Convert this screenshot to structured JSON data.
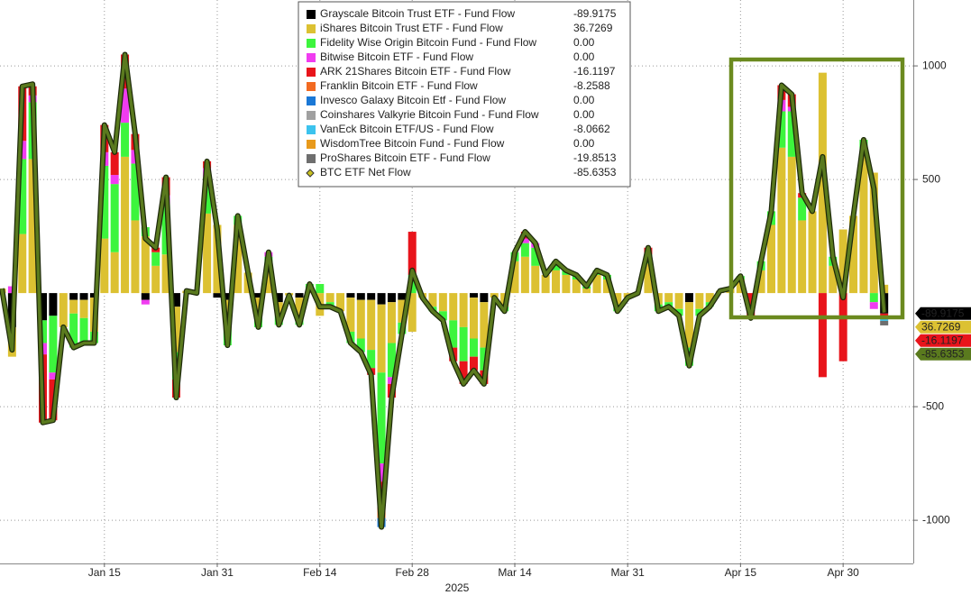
{
  "chart_data": {
    "type": "bar",
    "x_label": "2025",
    "categories": [
      null,
      null,
      null,
      null,
      null,
      null,
      null,
      null,
      null,
      null,
      "Jan 15",
      null,
      null,
      null,
      null,
      null,
      null,
      null,
      null,
      null,
      null,
      "Jan 31",
      null,
      null,
      null,
      null,
      null,
      null,
      null,
      null,
      null,
      "Feb 14",
      null,
      null,
      null,
      null,
      null,
      null,
      null,
      null,
      "Feb 28",
      null,
      null,
      null,
      null,
      null,
      null,
      null,
      null,
      null,
      "Mar 14",
      null,
      null,
      null,
      null,
      null,
      null,
      null,
      null,
      null,
      null,
      "Mar 31",
      null,
      null,
      null,
      null,
      null,
      null,
      null,
      null,
      null,
      null,
      "Apr 15",
      null,
      null,
      null,
      null,
      null,
      null,
      null,
      null,
      null,
      "Apr 30",
      null,
      null,
      null,
      null
    ],
    "ylim": [
      -1190,
      1290
    ],
    "yticks": [
      -1000,
      -500,
      500,
      1000
    ],
    "grid": true,
    "legend": "top",
    "series": [
      {
        "name": "Grayscale Bitcoin Trust ETF - Fund Flow",
        "color": "#000000",
        "tag": true,
        "legend_value": -89.9175,
        "values": [
          0,
          -150,
          0,
          0,
          -120,
          -100,
          0,
          -30,
          -30,
          -20,
          0,
          0,
          0,
          0,
          -30,
          0,
          0,
          -60,
          0,
          0,
          0,
          -20,
          -30,
          0,
          0,
          -20,
          0,
          -40,
          0,
          -20,
          0,
          0,
          0,
          0,
          -20,
          -30,
          -30,
          -50,
          -40,
          -30,
          0,
          0,
          0,
          0,
          0,
          0,
          -20,
          -40,
          0,
          0,
          0,
          0,
          0,
          0,
          0,
          0,
          0,
          0,
          0,
          0,
          0,
          0,
          0,
          0,
          0,
          0,
          0,
          -40,
          0,
          0,
          0,
          0,
          0,
          0,
          0,
          0,
          0,
          0,
          0,
          0,
          0,
          0,
          0,
          0,
          0,
          0,
          -89.9175
        ]
      },
      {
        "name": "iShares Bitcoin Trust ETF - Fund Flow",
        "color": "#dcc132",
        "tag": true,
        "legend_value": 36.7269,
        "values": [
          20,
          -130,
          260,
          590,
          0,
          0,
          -150,
          -60,
          -80,
          -150,
          240,
          180,
          600,
          320,
          250,
          120,
          170,
          -200,
          10,
          0,
          350,
          300,
          -130,
          300,
          90,
          -80,
          100,
          -60,
          -10,
          -90,
          10,
          -100,
          -40,
          -80,
          -150,
          -170,
          -220,
          -300,
          -180,
          -100,
          -170,
          -20,
          -60,
          -80,
          -120,
          -150,
          -180,
          -200,
          -20,
          -60,
          140,
          160,
          120,
          80,
          100,
          80,
          60,
          20,
          80,
          60,
          -50,
          -20,
          0,
          130,
          -50,
          -40,
          -70,
          -200,
          -70,
          -40,
          10,
          20,
          60,
          0,
          100,
          300,
          640,
          600,
          320,
          360,
          970,
          120,
          280,
          340,
          620,
          530,
          36.7269
        ]
      },
      {
        "name": "Fidelity Wise Origin Bitcoin Fund - Fund Flow",
        "color": "#3df53d",
        "legend_value": {
          "value": 0,
          "label": "0.00"
        },
        "values": [
          0,
          0,
          330,
          250,
          -100,
          -250,
          0,
          -150,
          -110,
          -50,
          320,
          300,
          150,
          250,
          40,
          60,
          220,
          -120,
          0,
          0,
          160,
          0,
          -70,
          40,
          0,
          -50,
          60,
          -40,
          0,
          -30,
          30,
          40,
          -20,
          0,
          -50,
          -60,
          -80,
          -400,
          -150,
          -50,
          80,
          0,
          -20,
          -40,
          -120,
          -150,
          -80,
          -100,
          0,
          -20,
          40,
          60,
          80,
          0,
          40,
          20,
          20,
          10,
          20,
          20,
          -30,
          0,
          0,
          40,
          -30,
          -20,
          -30,
          -80,
          -30,
          -20,
          0,
          0,
          15,
          0,
          40,
          60,
          160,
          200,
          100,
          0,
          0,
          40,
          0,
          0,
          55,
          -40,
          0
        ]
      },
      {
        "name": "Bitwise Bitcoin ETF - Fund Flow",
        "color": "#f03cf0",
        "legend_value": {
          "value": 0,
          "label": "0.00"
        },
        "values": [
          0,
          30,
          80,
          30,
          -50,
          -30,
          0,
          0,
          0,
          0,
          60,
          40,
          150,
          60,
          -20,
          0,
          40,
          0,
          0,
          0,
          40,
          0,
          0,
          0,
          0,
          0,
          20,
          0,
          0,
          0,
          0,
          0,
          0,
          0,
          0,
          0,
          0,
          -80,
          -30,
          0,
          0,
          0,
          0,
          0,
          0,
          0,
          0,
          0,
          0,
          0,
          0,
          20,
          20,
          0,
          0,
          0,
          0,
          0,
          0,
          0,
          0,
          0,
          0,
          0,
          0,
          0,
          0,
          0,
          0,
          0,
          0,
          0,
          0,
          0,
          0,
          0,
          50,
          20,
          0,
          0,
          0,
          0,
          0,
          0,
          0,
          -30,
          0
        ]
      },
      {
        "name": "ARK 21Shares Bitcoin ETF - Fund Flow",
        "color": "#e8141b",
        "tag": true,
        "legend_value": -16.1197,
        "values": [
          0,
          0,
          240,
          40,
          -300,
          -180,
          0,
          0,
          0,
          0,
          120,
          100,
          150,
          70,
          0,
          20,
          80,
          -80,
          0,
          0,
          30,
          0,
          0,
          0,
          0,
          0,
          0,
          0,
          0,
          0,
          0,
          0,
          0,
          0,
          0,
          0,
          -30,
          -120,
          -60,
          0,
          190,
          0,
          0,
          0,
          -60,
          -100,
          -60,
          -60,
          0,
          0,
          0,
          30,
          0,
          0,
          0,
          0,
          0,
          0,
          0,
          0,
          0,
          0,
          0,
          30,
          0,
          0,
          0,
          0,
          0,
          0,
          0,
          0,
          0,
          -110,
          0,
          0,
          65,
          55,
          20,
          0,
          -370,
          0,
          -300,
          0,
          0,
          0,
          -16.1197
        ]
      },
      {
        "name": "Franklin Bitcoin ETF - Fund Flow",
        "color": "#f26a21",
        "legend_value": -8.2588,
        "values": [
          0,
          0,
          0,
          0,
          0,
          0,
          0,
          0,
          0,
          0,
          0,
          0,
          0,
          0,
          0,
          0,
          0,
          0,
          0,
          0,
          0,
          0,
          0,
          0,
          0,
          0,
          0,
          0,
          0,
          0,
          0,
          0,
          0,
          0,
          0,
          0,
          0,
          -40,
          0,
          0,
          0,
          0,
          0,
          0,
          0,
          0,
          0,
          0,
          0,
          0,
          0,
          0,
          0,
          0,
          0,
          0,
          0,
          0,
          0,
          0,
          0,
          0,
          0,
          0,
          0,
          0,
          0,
          0,
          0,
          0,
          0,
          0,
          0,
          0,
          0,
          0,
          0,
          0,
          0,
          0,
          0,
          0,
          0,
          0,
          0,
          0,
          -8.2588
        ]
      },
      {
        "name": "Invesco Galaxy Bitcoin Etf - Fund Flow",
        "color": "#1a78d6",
        "legend_value": {
          "value": 0,
          "label": "0.00"
        },
        "values": [
          0,
          0,
          0,
          0,
          0,
          0,
          0,
          0,
          0,
          0,
          0,
          0,
          0,
          0,
          0,
          0,
          0,
          0,
          0,
          0,
          0,
          0,
          0,
          0,
          0,
          0,
          0,
          0,
          0,
          0,
          0,
          0,
          0,
          0,
          0,
          0,
          0,
          -40,
          0,
          0,
          0,
          0,
          0,
          0,
          0,
          0,
          0,
          0,
          0,
          0,
          0,
          0,
          0,
          0,
          0,
          0,
          0,
          0,
          0,
          0,
          0,
          0,
          0,
          0,
          0,
          0,
          0,
          0,
          0,
          0,
          0,
          0,
          0,
          0,
          0,
          0,
          0,
          0,
          0,
          0,
          0,
          0,
          0,
          0,
          0,
          0,
          0
        ]
      },
      {
        "name": "Coinshares Valkyrie Bitcoin Fund - Fund Flow",
        "color": "#a0a0a0",
        "legend_value": {
          "value": 0,
          "label": "0.00"
        },
        "values": [
          0,
          0,
          0,
          0,
          0,
          0,
          0,
          0,
          0,
          0,
          0,
          0,
          0,
          0,
          0,
          0,
          0,
          0,
          0,
          0,
          0,
          0,
          0,
          0,
          0,
          0,
          0,
          0,
          0,
          0,
          0,
          0,
          0,
          0,
          0,
          0,
          0,
          0,
          0,
          0,
          0,
          0,
          0,
          0,
          0,
          0,
          0,
          0,
          0,
          0,
          0,
          0,
          0,
          0,
          0,
          0,
          0,
          0,
          0,
          0,
          0,
          0,
          0,
          0,
          0,
          0,
          0,
          0,
          0,
          0,
          0,
          0,
          0,
          0,
          0,
          0,
          0,
          0,
          0,
          0,
          0,
          0,
          0,
          0,
          0,
          0,
          0
        ]
      },
      {
        "name": "VanEck Bitcoin ETF/US - Fund Flow",
        "color": "#3cc3ee",
        "legend_value": -8.0662,
        "values": [
          0,
          0,
          0,
          0,
          0,
          0,
          0,
          0,
          0,
          0,
          0,
          0,
          0,
          0,
          0,
          0,
          0,
          0,
          0,
          0,
          0,
          0,
          0,
          0,
          0,
          0,
          0,
          0,
          0,
          0,
          0,
          0,
          0,
          0,
          0,
          0,
          0,
          0,
          0,
          0,
          0,
          0,
          0,
          0,
          0,
          0,
          0,
          0,
          0,
          0,
          0,
          0,
          0,
          0,
          0,
          0,
          0,
          0,
          0,
          0,
          0,
          0,
          0,
          0,
          0,
          0,
          0,
          0,
          0,
          0,
          0,
          0,
          0,
          0,
          0,
          0,
          0,
          0,
          0,
          0,
          0,
          0,
          0,
          0,
          0,
          0,
          -8.0662
        ]
      },
      {
        "name": "WisdomTree Bitcoin Fund - Fund Flow",
        "color": "#e89a1c",
        "legend_value": {
          "value": 0,
          "label": "0.00"
        },
        "values": [
          0,
          0,
          0,
          0,
          0,
          0,
          0,
          0,
          0,
          0,
          0,
          0,
          0,
          0,
          0,
          0,
          0,
          0,
          0,
          0,
          0,
          0,
          0,
          0,
          0,
          0,
          0,
          0,
          0,
          0,
          0,
          0,
          0,
          0,
          0,
          0,
          0,
          0,
          0,
          0,
          0,
          0,
          0,
          0,
          0,
          0,
          0,
          0,
          0,
          0,
          0,
          0,
          0,
          0,
          0,
          0,
          0,
          0,
          0,
          0,
          0,
          0,
          0,
          0,
          0,
          0,
          0,
          0,
          0,
          0,
          0,
          0,
          0,
          0,
          0,
          0,
          0,
          0,
          0,
          0,
          0,
          0,
          0,
          0,
          0,
          0,
          0
        ]
      },
      {
        "name": "ProShares Bitcoin ETF - Fund Flow",
        "color": "#6e6e6e",
        "legend_value": -19.8513,
        "values": [
          0,
          0,
          0,
          0,
          0,
          0,
          0,
          0,
          0,
          0,
          0,
          0,
          0,
          0,
          0,
          0,
          0,
          0,
          0,
          0,
          0,
          0,
          0,
          0,
          0,
          0,
          0,
          0,
          0,
          0,
          0,
          0,
          0,
          0,
          0,
          0,
          0,
          0,
          0,
          0,
          0,
          0,
          0,
          0,
          0,
          0,
          0,
          0,
          0,
          0,
          0,
          0,
          0,
          0,
          0,
          0,
          0,
          0,
          0,
          0,
          0,
          0,
          0,
          0,
          0,
          0,
          0,
          0,
          0,
          0,
          0,
          0,
          0,
          0,
          0,
          0,
          0,
          0,
          0,
          0,
          0,
          0,
          0,
          0,
          0,
          0,
          -19.8513
        ]
      },
      {
        "name": "BTC ETF Net Flow",
        "type": "line",
        "color": "#5a7a1e",
        "tag": true,
        "legend_value": -85.6353,
        "values": [
          20,
          -250,
          910,
          920,
          -570,
          -560,
          -150,
          -240,
          -220,
          -220,
          740,
          620,
          1050,
          700,
          240,
          200,
          510,
          -460,
          10,
          0,
          580,
          280,
          -230,
          340,
          90,
          -150,
          180,
          -140,
          -10,
          -140,
          40,
          -60,
          -60,
          -80,
          -220,
          -260,
          -360,
          -1030,
          -460,
          -180,
          100,
          -20,
          -80,
          -120,
          -300,
          -400,
          -340,
          -400,
          -20,
          -80,
          180,
          270,
          220,
          80,
          140,
          100,
          80,
          30,
          100,
          80,
          -80,
          -20,
          0,
          200,
          -80,
          -60,
          -100,
          -320,
          -100,
          -60,
          10,
          20,
          75,
          -110,
          140,
          360,
          915,
          875,
          440,
          360,
          600,
          160,
          -20,
          340,
          675,
          460,
          -85.6353
        ]
      }
    ]
  }
}
